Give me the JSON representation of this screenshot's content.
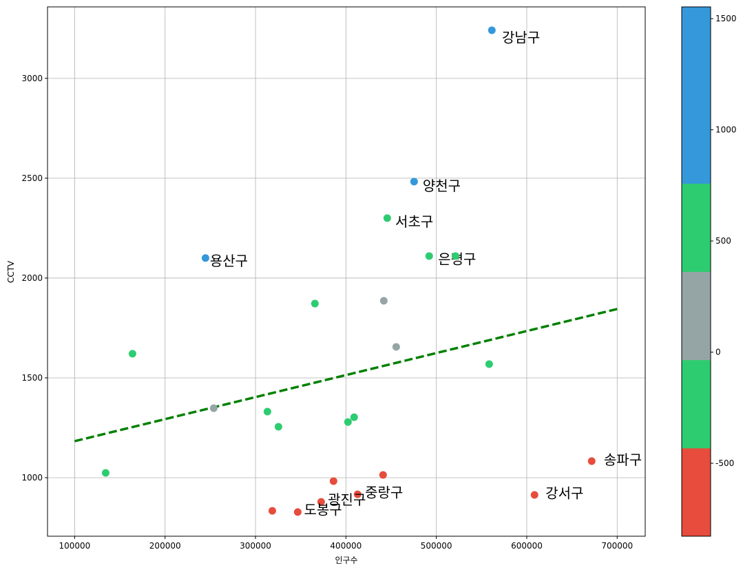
{
  "chart_data": {
    "type": "scatter",
    "xlabel": "인구수",
    "ylabel": "CCTV",
    "xlim": [
      70000,
      731000
    ],
    "ylim": [
      707,
      3358
    ],
    "xticks": [
      100000,
      200000,
      300000,
      400000,
      500000,
      600000,
      700000
    ],
    "yticks": [
      1000,
      1500,
      2000,
      2500,
      3000
    ],
    "grid": true,
    "series": [
      {
        "x": [
          561400,
          475400,
          445700,
          492100,
          521100,
          244700,
          365700,
          441900,
          455600,
          164000,
          558400,
          253800,
          313200,
          409100,
          402300,
          325400,
          134300,
          671800,
          441100,
          386300,
          608600,
          412900,
          372600,
          318600,
          346700
        ],
        "values": [
          3241,
          2483,
          2300,
          2110,
          2110,
          2100,
          1872,
          1886,
          1655,
          1621,
          1569,
          1348,
          1331,
          1303,
          1279,
          1255,
          1024,
          1083,
          1014,
          983,
          914,
          917,
          879,
          834,
          828
        ],
        "colors": [
          "#3498db",
          "#3498db",
          "#2ecc71",
          "#2ecc71",
          "#2ecc71",
          "#3498db",
          "#2ecc71",
          "#95a5a6",
          "#95a5a6",
          "#2ecc71",
          "#2ecc71",
          "#95a5a6",
          "#2ecc71",
          "#2ecc71",
          "#2ecc71",
          "#2ecc71",
          "#2ecc71",
          "#e74c3c",
          "#e74c3c",
          "#e74c3c",
          "#e74c3c",
          "#e74c3c",
          "#e74c3c",
          "#e74c3c",
          "#e74c3c"
        ],
        "labels": [
          "강남구",
          "양천구",
          "서초구",
          "은평구",
          null,
          "용산구",
          null,
          null,
          null,
          null,
          null,
          null,
          null,
          null,
          null,
          null,
          null,
          "송파구",
          null,
          null,
          "강서구",
          "중랑구",
          "광진구",
          null,
          "도봉구"
        ]
      }
    ],
    "fit_line": {
      "x": [
        100000,
        700000
      ],
      "values": [
        1183,
        1845
      ],
      "color": "#008000"
    },
    "colorbar": {
      "lim": [
        -828,
        1553
      ],
      "ticks": [
        -500,
        0,
        500,
        1000,
        1500
      ],
      "colors": [
        "#e74c3c",
        "#2ecc71",
        "#95a5a6",
        "#2ecc71",
        "#3498db",
        "#3498db"
      ]
    }
  }
}
